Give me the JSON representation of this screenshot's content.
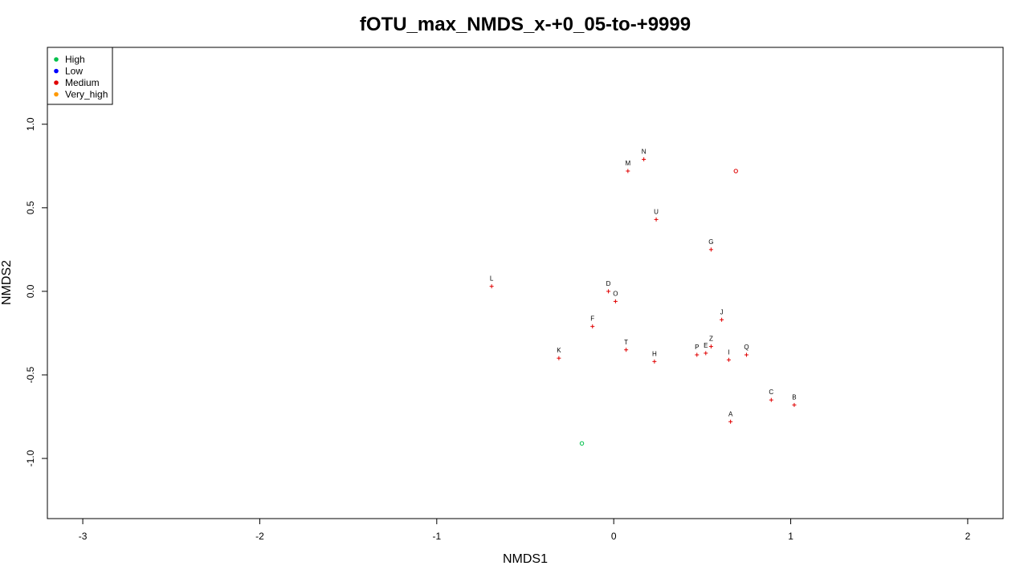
{
  "chart_data": {
    "type": "scatter",
    "title": "fOTU_max_NMDS_x-+0_05-to-+9999",
    "xlabel": "NMDS1",
    "ylabel": "NMDS2",
    "xlim": [
      -3.2,
      2.2
    ],
    "ylim": [
      -1.36,
      1.46
    ],
    "xticks": [
      -3,
      -2,
      -1,
      0,
      1,
      2
    ],
    "xtick_labels": [
      "-3",
      "-2",
      "-1",
      "0",
      "1",
      "2"
    ],
    "yticks": [
      -1.0,
      -0.5,
      0.0,
      0.5,
      1.0
    ],
    "ytick_labels": [
      "-1.0",
      "-0.5",
      "0.0",
      "0.5",
      "1.0"
    ],
    "grid": false,
    "legend_position": "top-left",
    "legend": [
      {
        "name": "High",
        "color": "#00c04b"
      },
      {
        "name": "Low",
        "color": "#0000ff"
      },
      {
        "name": "Medium",
        "color": "#e00000"
      },
      {
        "name": "Very_high",
        "color": "#ff9900"
      }
    ],
    "series": [
      {
        "name": "Medium",
        "marker": "plus",
        "color": "#e00000",
        "points": [
          {
            "label": "A",
            "x": 0.66,
            "y": -0.78
          },
          {
            "label": "B",
            "x": 1.02,
            "y": -0.68
          },
          {
            "label": "C",
            "x": 0.89,
            "y": -0.65
          },
          {
            "label": "D",
            "x": -0.03,
            "y": 0.0
          },
          {
            "label": "E",
            "x": 0.52,
            "y": -0.37
          },
          {
            "label": "F",
            "x": -0.12,
            "y": -0.21
          },
          {
            "label": "G",
            "x": 0.55,
            "y": 0.25
          },
          {
            "label": "H",
            "x": 0.23,
            "y": -0.42
          },
          {
            "label": "I",
            "x": 0.65,
            "y": -0.41
          },
          {
            "label": "J",
            "x": 0.61,
            "y": -0.17
          },
          {
            "label": "K",
            "x": -0.31,
            "y": -0.4
          },
          {
            "label": "L",
            "x": -0.69,
            "y": 0.03
          },
          {
            "label": "M",
            "x": 0.08,
            "y": 0.72
          },
          {
            "label": "N",
            "x": 0.17,
            "y": 0.79
          },
          {
            "label": "O",
            "x": 0.01,
            "y": -0.06
          },
          {
            "label": "P",
            "x": 0.47,
            "y": -0.38
          },
          {
            "label": "Q",
            "x": 0.75,
            "y": -0.38
          },
          {
            "label": "T",
            "x": 0.07,
            "y": -0.35
          },
          {
            "label": "U",
            "x": 0.24,
            "y": 0.43
          },
          {
            "label": "Z",
            "x": 0.55,
            "y": -0.33
          }
        ]
      },
      {
        "name": "Medium",
        "marker": "circle",
        "color": "#e00000",
        "points": [
          {
            "label": "",
            "x": 0.69,
            "y": 0.72
          }
        ]
      },
      {
        "name": "High",
        "marker": "circle",
        "color": "#00c04b",
        "points": [
          {
            "label": "",
            "x": -0.18,
            "y": -0.91
          }
        ]
      }
    ]
  }
}
